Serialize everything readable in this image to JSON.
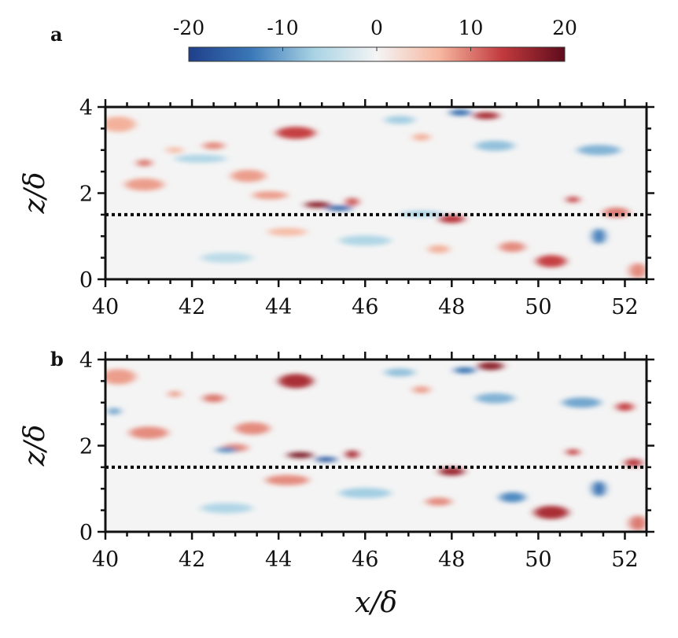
{
  "chart_data": [
    {
      "type": "heatmap",
      "panel_label": "a",
      "xlim": [
        40,
        52.5
      ],
      "ylim": [
        0,
        4
      ],
      "xticks": [
        "40",
        "42",
        "44",
        "46",
        "48",
        "50",
        "52"
      ],
      "yticks": [
        "0",
        "2",
        "4"
      ],
      "xlabel": "",
      "ylabel": "z/δ",
      "reference_line": {
        "z": 1.5,
        "style": "dotted",
        "color": "#000000"
      },
      "features": [
        {
          "x": 44.4,
          "z": 3.4,
          "lx": 0.9,
          "lz": 0.12,
          "v": 13
        },
        {
          "x": 48.8,
          "z": 3.8,
          "lx": 0.6,
          "lz": 0.07,
          "v": 15
        },
        {
          "x": 48.2,
          "z": 3.87,
          "lx": 0.5,
          "lz": 0.06,
          "v": -15
        },
        {
          "x": 40.3,
          "z": 3.6,
          "lx": 0.8,
          "lz": 0.15,
          "v": 7
        },
        {
          "x": 42.5,
          "z": 3.1,
          "lx": 0.5,
          "lz": 0.07,
          "v": 9
        },
        {
          "x": 41.6,
          "z": 3.0,
          "lx": 0.4,
          "lz": 0.06,
          "v": 6
        },
        {
          "x": 40.9,
          "z": 2.7,
          "lx": 0.35,
          "lz": 0.07,
          "v": 10
        },
        {
          "x": 43.3,
          "z": 2.4,
          "lx": 0.8,
          "lz": 0.12,
          "v": 8
        },
        {
          "x": 40.9,
          "z": 2.2,
          "lx": 0.9,
          "lz": 0.12,
          "v": 8
        },
        {
          "x": 43.8,
          "z": 1.95,
          "lx": 0.8,
          "lz": 0.08,
          "v": 8
        },
        {
          "x": 44.9,
          "z": 1.73,
          "lx": 0.6,
          "lz": 0.06,
          "v": 17
        },
        {
          "x": 45.4,
          "z": 1.65,
          "lx": 0.6,
          "lz": 0.05,
          "v": -16
        },
        {
          "x": 45.7,
          "z": 1.8,
          "lx": 0.3,
          "lz": 0.08,
          "v": 12
        },
        {
          "x": 48.0,
          "z": 1.4,
          "lx": 0.6,
          "lz": 0.08,
          "v": 14
        },
        {
          "x": 47.3,
          "z": 1.52,
          "lx": 1.0,
          "lz": 0.06,
          "v": -7
        },
        {
          "x": 50.3,
          "z": 0.42,
          "lx": 0.7,
          "lz": 0.12,
          "v": 13
        },
        {
          "x": 52.3,
          "z": 0.2,
          "lx": 0.4,
          "lz": 0.15,
          "v": 9
        },
        {
          "x": 51.4,
          "z": 1.0,
          "lx": 0.3,
          "lz": 0.15,
          "v": -13
        },
        {
          "x": 50.8,
          "z": 1.85,
          "lx": 0.3,
          "lz": 0.06,
          "v": 13
        },
        {
          "x": 51.8,
          "z": 1.55,
          "lx": 0.6,
          "lz": 0.1,
          "v": 10
        },
        {
          "x": 49.0,
          "z": 3.1,
          "lx": 0.9,
          "lz": 0.1,
          "v": -8
        },
        {
          "x": 51.4,
          "z": 3.0,
          "lx": 1.0,
          "lz": 0.1,
          "v": -9
        },
        {
          "x": 49.4,
          "z": 0.75,
          "lx": 0.6,
          "lz": 0.1,
          "v": 9
        },
        {
          "x": 44.2,
          "z": 1.1,
          "lx": 0.9,
          "lz": 0.08,
          "v": 6
        },
        {
          "x": 46.8,
          "z": 3.7,
          "lx": 0.7,
          "lz": 0.08,
          "v": -7
        },
        {
          "x": 47.3,
          "z": 3.3,
          "lx": 0.4,
          "lz": 0.07,
          "v": 7
        },
        {
          "x": 42.8,
          "z": 0.5,
          "lx": 1.2,
          "lz": 0.1,
          "v": -5
        },
        {
          "x": 46.0,
          "z": 0.9,
          "lx": 1.2,
          "lz": 0.1,
          "v": -6
        },
        {
          "x": 42.2,
          "z": 2.8,
          "lx": 1.2,
          "lz": 0.08,
          "v": -6
        },
        {
          "x": 47.7,
          "z": 0.7,
          "lx": 0.5,
          "lz": 0.08,
          "v": 7
        }
      ]
    },
    {
      "type": "heatmap",
      "panel_label": "b",
      "xlim": [
        40,
        52.5
      ],
      "ylim": [
        0,
        4
      ],
      "xticks": [
        "40",
        "42",
        "44",
        "46",
        "48",
        "50",
        "52"
      ],
      "yticks": [
        "0",
        "2",
        "4"
      ],
      "xlabel": "x/δ",
      "ylabel": "z/δ",
      "reference_line": {
        "z": 1.5,
        "style": "dotted",
        "color": "#000000"
      },
      "features": [
        {
          "x": 44.4,
          "z": 3.5,
          "lx": 0.8,
          "lz": 0.14,
          "v": 15
        },
        {
          "x": 48.9,
          "z": 3.85,
          "lx": 0.6,
          "lz": 0.08,
          "v": 17
        },
        {
          "x": 48.3,
          "z": 3.75,
          "lx": 0.5,
          "lz": 0.06,
          "v": -14
        },
        {
          "x": 40.3,
          "z": 3.6,
          "lx": 0.8,
          "lz": 0.15,
          "v": 8
        },
        {
          "x": 42.5,
          "z": 3.1,
          "lx": 0.5,
          "lz": 0.08,
          "v": 10
        },
        {
          "x": 41.6,
          "z": 3.2,
          "lx": 0.3,
          "lz": 0.06,
          "v": 8
        },
        {
          "x": 40.2,
          "z": 2.8,
          "lx": 0.3,
          "lz": 0.07,
          "v": -10
        },
        {
          "x": 43.4,
          "z": 2.4,
          "lx": 0.8,
          "lz": 0.12,
          "v": 9
        },
        {
          "x": 41.0,
          "z": 2.3,
          "lx": 0.9,
          "lz": 0.12,
          "v": 9
        },
        {
          "x": 43.0,
          "z": 1.95,
          "lx": 0.6,
          "lz": 0.08,
          "v": 9
        },
        {
          "x": 44.5,
          "z": 1.78,
          "lx": 0.6,
          "lz": 0.06,
          "v": 18
        },
        {
          "x": 45.1,
          "z": 1.68,
          "lx": 0.5,
          "lz": 0.05,
          "v": -17
        },
        {
          "x": 45.7,
          "z": 1.8,
          "lx": 0.3,
          "lz": 0.08,
          "v": 15
        },
        {
          "x": 48.0,
          "z": 1.4,
          "lx": 0.6,
          "lz": 0.08,
          "v": 16
        },
        {
          "x": 42.8,
          "z": 1.9,
          "lx": 0.5,
          "lz": 0.05,
          "v": -12
        },
        {
          "x": 50.3,
          "z": 0.45,
          "lx": 0.8,
          "lz": 0.13,
          "v": 15
        },
        {
          "x": 52.3,
          "z": 0.2,
          "lx": 0.4,
          "lz": 0.15,
          "v": 10
        },
        {
          "x": 51.4,
          "z": 1.0,
          "lx": 0.3,
          "lz": 0.15,
          "v": -14
        },
        {
          "x": 50.8,
          "z": 1.85,
          "lx": 0.3,
          "lz": 0.06,
          "v": 13
        },
        {
          "x": 52.2,
          "z": 1.6,
          "lx": 0.4,
          "lz": 0.08,
          "v": 14
        },
        {
          "x": 49.0,
          "z": 3.1,
          "lx": 0.9,
          "lz": 0.1,
          "v": -9
        },
        {
          "x": 51.0,
          "z": 3.0,
          "lx": 0.9,
          "lz": 0.1,
          "v": -10
        },
        {
          "x": 52.0,
          "z": 2.9,
          "lx": 0.4,
          "lz": 0.08,
          "v": 13
        },
        {
          "x": 49.4,
          "z": 0.8,
          "lx": 0.6,
          "lz": 0.1,
          "v": -12
        },
        {
          "x": 44.2,
          "z": 1.2,
          "lx": 1.0,
          "lz": 0.1,
          "v": 9
        },
        {
          "x": 46.8,
          "z": 3.7,
          "lx": 0.7,
          "lz": 0.08,
          "v": -8
        },
        {
          "x": 47.3,
          "z": 3.3,
          "lx": 0.4,
          "lz": 0.07,
          "v": 8
        },
        {
          "x": 42.8,
          "z": 0.55,
          "lx": 1.2,
          "lz": 0.1,
          "v": -6
        },
        {
          "x": 46.0,
          "z": 0.9,
          "lx": 1.2,
          "lz": 0.1,
          "v": -7
        },
        {
          "x": 47.7,
          "z": 0.7,
          "lx": 0.6,
          "lz": 0.08,
          "v": 9
        }
      ]
    }
  ],
  "colorbar": {
    "min": -20,
    "max": 20,
    "ticks": [
      "-20",
      "-10",
      "0",
      "10",
      "20"
    ],
    "colors": [
      "#1f3f8a",
      "#3a78b8",
      "#a9d3e4",
      "#f4f4f4",
      "#f6b7a0",
      "#c23a3e",
      "#5e0c1c"
    ]
  }
}
